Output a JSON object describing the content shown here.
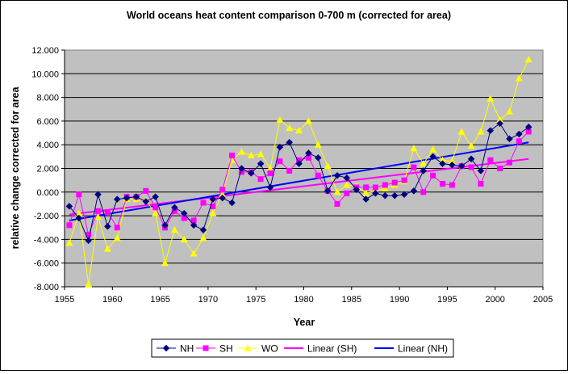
{
  "chart_data": {
    "type": "line",
    "title": "World oceans heat content comparison 0-700 m (corrected for area)",
    "xlabel": "Year",
    "ylabel": "relative change corrected for area",
    "xlim": [
      1955,
      2005
    ],
    "ylim": [
      -8,
      12
    ],
    "xticks": [
      1955,
      1960,
      1965,
      1970,
      1975,
      1980,
      1985,
      1990,
      1995,
      2000,
      2005
    ],
    "yticks": [
      -8,
      -6,
      -4,
      -2,
      0,
      2,
      4,
      6,
      8,
      10,
      12
    ],
    "xtick_labels": [
      "1955",
      "1960",
      "1965",
      "1970",
      "1975",
      "1980",
      "1985",
      "1990",
      "1995",
      "2000",
      "2005"
    ],
    "ytick_labels": [
      "-8.000",
      "-6.000",
      "-4.000",
      "-2.000",
      "0.000",
      "2.000",
      "4.000",
      "6.000",
      "8.000",
      "10.000",
      "12.000"
    ],
    "grid": "horizontal",
    "legend_position": "bottom",
    "x": [
      1955.5,
      1956.5,
      1957.5,
      1958.5,
      1959.5,
      1960.5,
      1961.5,
      1962.5,
      1963.5,
      1964.5,
      1965.5,
      1966.5,
      1967.5,
      1968.5,
      1969.5,
      1970.5,
      1971.5,
      1972.5,
      1973.5,
      1974.5,
      1975.5,
      1976.5,
      1977.5,
      1978.5,
      1979.5,
      1980.5,
      1981.5,
      1982.5,
      1983.5,
      1984.5,
      1985.5,
      1986.5,
      1987.5,
      1988.5,
      1989.5,
      1990.5,
      1991.5,
      1992.5,
      1993.5,
      1994.5,
      1995.5,
      1996.5,
      1997.5,
      1998.5,
      1999.5,
      2000.5,
      2001.5,
      2002.5,
      2003.5
    ],
    "series": [
      {
        "name": "NH",
        "color": "#000080",
        "marker": "diamond",
        "values": [
          -1.2,
          -2.2,
          -4.1,
          -0.2,
          -2.9,
          -0.6,
          -0.5,
          -0.4,
          -0.8,
          -0.4,
          -2.8,
          -1.3,
          -1.8,
          -2.8,
          -3.2,
          -0.6,
          -0.5,
          -0.9,
          2.0,
          1.6,
          2.4,
          0.4,
          3.8,
          4.2,
          2.4,
          3.3,
          2.9,
          0.1,
          1.4,
          1.2,
          0.2,
          -0.6,
          -0.1,
          -0.3,
          -0.3,
          -0.2,
          0.1,
          1.8,
          3.0,
          2.4,
          2.3,
          2.2,
          2.8,
          1.8,
          5.2,
          5.8,
          4.5,
          4.9,
          5.5
        ]
      },
      {
        "name": "SH",
        "color": "#ff00ff",
        "marker": "square",
        "values": [
          -2.8,
          -0.2,
          -3.6,
          -1.6,
          -1.7,
          -3.0,
          -0.4,
          -0.4,
          0.1,
          -1.3,
          -3.0,
          -1.6,
          -2.2,
          -2.4,
          -0.9,
          -1.2,
          0.2,
          3.1,
          1.7,
          1.7,
          1.1,
          1.6,
          2.6,
          1.8,
          2.7,
          2.9,
          1.4,
          0.1,
          -1.0,
          -0.1,
          0.4,
          0.4,
          0.4,
          0.6,
          0.8,
          1.0,
          2.1,
          0.0,
          1.4,
          0.7,
          0.6,
          2.2,
          2.1,
          0.7,
          2.7,
          2.0,
          2.5,
          4.3,
          5.1
        ]
      },
      {
        "name": "WO",
        "color": "#ffff00",
        "marker": "triangle",
        "values": [
          -4.3,
          -1.8,
          -7.8,
          -2.1,
          -4.8,
          -3.9,
          -0.6,
          -0.6,
          -0.7,
          -1.8,
          -6.0,
          -3.2,
          -4.0,
          -5.2,
          -3.9,
          -1.8,
          -0.2,
          2.7,
          3.4,
          3.1,
          3.2,
          2.0,
          6.1,
          5.4,
          5.2,
          6.0,
          4.0,
          2.2,
          0.0,
          0.6,
          0.5,
          -0.1,
          0.1,
          0.3,
          0.6,
          0.9,
          3.7,
          2.4,
          3.6,
          2.7,
          2.6,
          5.1,
          3.9,
          5.1,
          7.9,
          6.1,
          6.8,
          9.6,
          11.2
        ]
      }
    ],
    "trendlines": [
      {
        "name": "Linear (SH)",
        "color": "#ff00ff",
        "x": [
          1955.5,
          2003.5
        ],
        "y": [
          -1.9,
          2.8
        ]
      },
      {
        "name": "Linear (NH)",
        "color": "#0000ff",
        "x": [
          1955.5,
          2003.5
        ],
        "y": [
          -2.4,
          4.2
        ]
      }
    ],
    "legend": [
      "NH",
      "SH",
      "WO",
      "Linear (SH)",
      "Linear (NH)"
    ]
  }
}
